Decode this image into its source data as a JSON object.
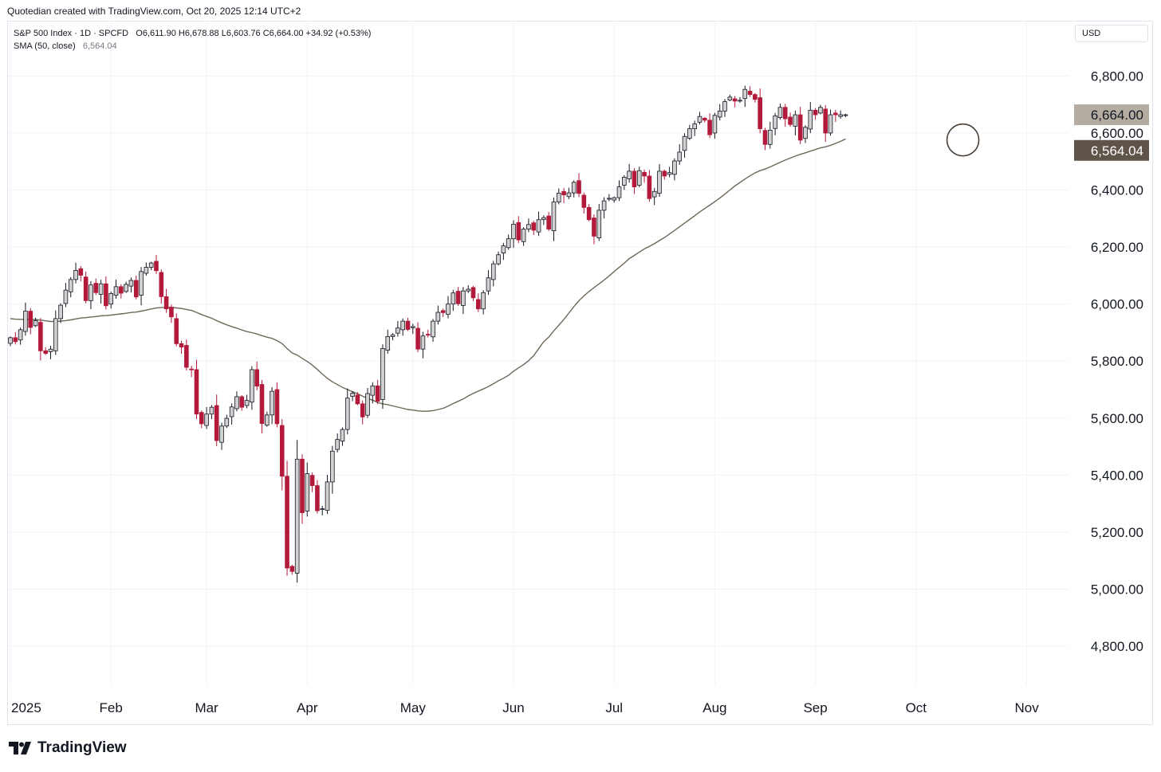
{
  "header": {
    "credit": "Quotedian created with TradingView.com, Oct 20, 2025 12:14 UTC+2",
    "symbol": "S&P 500 Index · 1D · SPCFD",
    "ohlc": "O6,611.90 H6,678.88 L6,603.76 C6,664.00 +34.92 (+0.53%)",
    "sma_label": "SMA (50, close)",
    "sma_value": "6,564.04"
  },
  "currency": "USD",
  "brand": "TradingView",
  "colors": {
    "up_fill": "#d1d1d1",
    "down_fill": "#b2193a",
    "sma_line": "#6f6758",
    "last_price_tag": "#b4aca1",
    "sma_tag": "#5f544a",
    "grid": "#f0f3fa"
  },
  "chart_data": {
    "type": "candlestick",
    "y_ticks": [
      {
        "v": 4800,
        "label": "4,800.00"
      },
      {
        "v": 5000,
        "label": "5,000.00"
      },
      {
        "v": 5200,
        "label": "5,200.00"
      },
      {
        "v": 5400,
        "label": "5,400.00"
      },
      {
        "v": 5600,
        "label": "5,600.00"
      },
      {
        "v": 5800,
        "label": "5,800.00"
      },
      {
        "v": 6000,
        "label": "6,000.00"
      },
      {
        "v": 6200,
        "label": "6,200.00"
      },
      {
        "v": 6400,
        "label": "6,400.00"
      },
      {
        "v": 6600,
        "label": "6,600.00"
      },
      {
        "v": 6800,
        "label": "6,800.00"
      }
    ],
    "x_ticks": [
      {
        "label": "2025",
        "index": 0
      },
      {
        "label": "Feb",
        "index": 20
      },
      {
        "label": "Mar",
        "index": 39
      },
      {
        "label": "Apr",
        "index": 59
      },
      {
        "label": "May",
        "index": 80
      },
      {
        "label": "Jun",
        "index": 100
      },
      {
        "label": "Jul",
        "index": 120
      },
      {
        "label": "Aug",
        "index": 140
      },
      {
        "label": "Sep",
        "index": 160
      },
      {
        "label": "Oct",
        "index": 180
      },
      {
        "label": "Nov",
        "index": 202
      }
    ],
    "last_price": {
      "value": 6664.0,
      "label": "6,664.00"
    },
    "sma_price": {
      "value": 6564.04,
      "label": "6,564.04"
    },
    "highlight_circle": {
      "index": 189,
      "value": 6570
    },
    "closes": [
      5882,
      5868,
      5910,
      5975,
      5918,
      5942,
      5836,
      5827,
      5842,
      5949,
      5996,
      6049,
      6086,
      6118,
      6101,
      6012,
      6067,
      6040,
      6071,
      5994,
      6037,
      6061,
      6038,
      6069,
      6083,
      6025,
      6114,
      6129,
      6144,
      6117,
      6026,
      5983,
      5955,
      5861,
      5849,
      5778,
      5770,
      5614,
      5580,
      5614,
      5638,
      5521,
      5572,
      5599,
      5639,
      5675,
      5638,
      5662,
      5770,
      5712,
      5581,
      5611,
      5694,
      5580,
      5396,
      5074,
      5062,
      5456,
      5268,
      5405,
      5363,
      5275,
      5282,
      5376,
      5484,
      5525,
      5560,
      5670,
      5687,
      5650,
      5604,
      5686,
      5713,
      5659,
      5844,
      5886,
      5892,
      5916,
      5940,
      5911,
      5921,
      5842,
      5888,
      5891,
      5940,
      5971,
      5970,
      6000,
      6039,
      6001,
      6046,
      6052,
      6022,
      5983,
      6040,
      6092,
      6141,
      6173,
      6204,
      6229,
      6280,
      6225,
      6263,
      6279,
      6259,
      6296,
      6303,
      6263,
      6358,
      6389,
      6383,
      6390,
      6427,
      6388,
      6339,
      6296,
      6238,
      6329,
      6362,
      6371,
      6373,
      6411,
      6445,
      6466,
      6411,
      6468,
      6449,
      6370,
      6395,
      6466,
      6449,
      6461,
      6502,
      6533,
      6588,
      6615,
      6632,
      6658,
      6645,
      6594,
      6662,
      6677,
      6710,
      6726,
      6712,
      6715,
      6753,
      6735,
      6718,
      6615,
      6560,
      6610,
      6660,
      6690,
      6650,
      6630,
      6664,
      6575,
      6620,
      6680,
      6664,
      6690,
      6600,
      6664,
      6664,
      6664,
      6664
    ]
  }
}
